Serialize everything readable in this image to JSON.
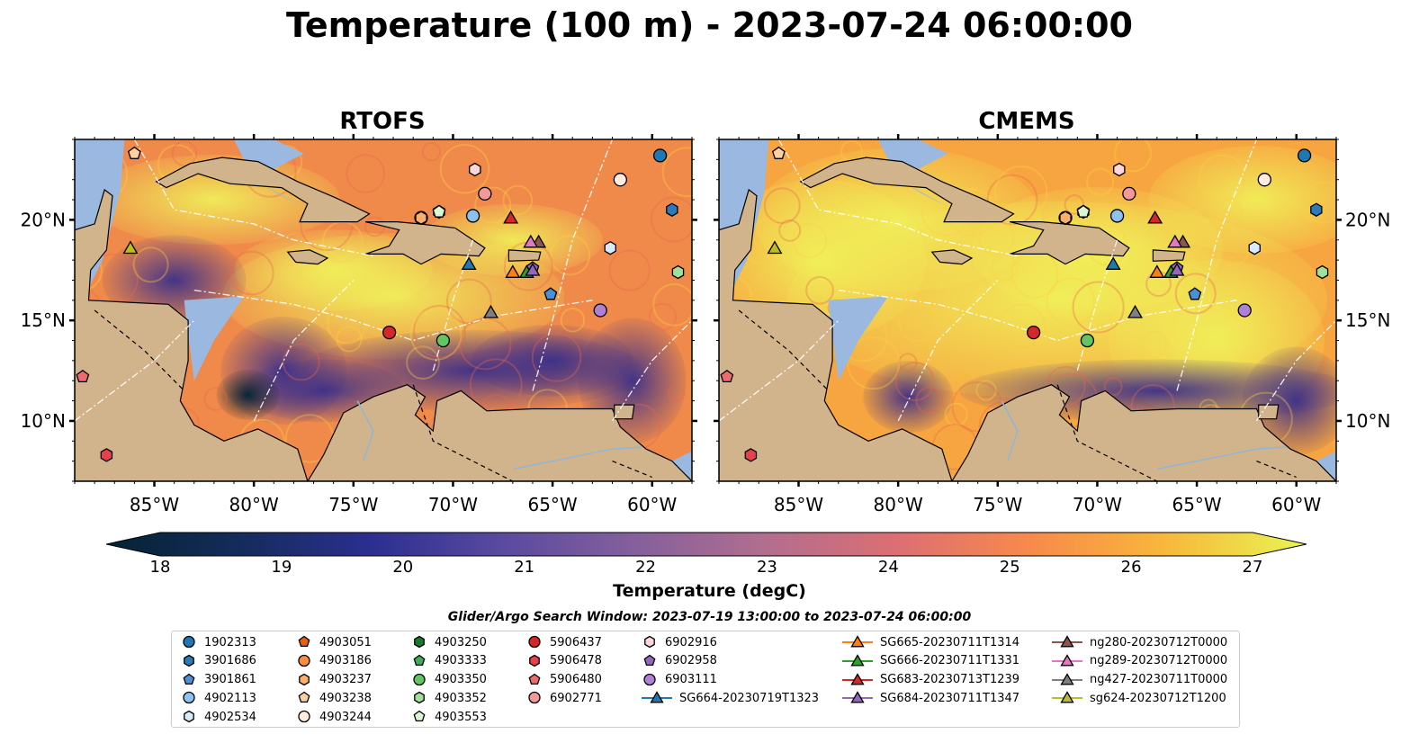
{
  "title": "Temperature (100 m) - 2023-07-24 06:00:00",
  "panels": [
    {
      "title": "RTOFS"
    },
    {
      "title": "CMEMS"
    }
  ],
  "map": {
    "lon_range": [
      -89,
      -58
    ],
    "lat_range": [
      7,
      24
    ],
    "lon_ticks": [
      "85°W",
      "80°W",
      "75°W",
      "70°W",
      "65°W",
      "60°W"
    ],
    "lat_ticks": [
      "20°N",
      "15°N",
      "10°N"
    ],
    "colors": {
      "land": "#d2b48c",
      "shelf": "#9ab8e0",
      "contour": "#8a6a4a",
      "eez": "#ffffff"
    }
  },
  "colorbar": {
    "label": "Temperature (degC)",
    "min": 18,
    "max": 27,
    "ticks": [
      "18",
      "19",
      "20",
      "21",
      "22",
      "23",
      "24",
      "25",
      "26",
      "27"
    ],
    "extend": "both",
    "colormap": "thermal"
  },
  "search_window": "Glider/Argo Search Window: 2023-07-19 13:00:00 to 2023-07-24 06:00:00",
  "platforms": [
    {
      "id": "1902313",
      "marker": "circle",
      "color": "#1f77b4",
      "lon": -59.6,
      "lat": 23.2
    },
    {
      "id": "3901686",
      "marker": "hexagon",
      "color": "#2b7bba",
      "lon": -59.0,
      "lat": 20.5
    },
    {
      "id": "3901861",
      "marker": "pentagon",
      "color": "#4a90d9",
      "lon": -65.1,
      "lat": 16.3
    },
    {
      "id": "4902113",
      "marker": "circle",
      "color": "#8ec2ee",
      "lon": -69.0,
      "lat": 20.2
    },
    {
      "id": "4902534",
      "marker": "hexagon",
      "color": "#d9ebfb",
      "lon": -62.1,
      "lat": 18.6
    },
    {
      "id": "4903051",
      "marker": "pentagon",
      "color": "#e8600c",
      "lon": -71.6,
      "lat": 20.1
    },
    {
      "id": "4903186",
      "marker": "circle",
      "color": "#fd8d3c",
      "lon": -71.6,
      "lat": 20.1
    },
    {
      "id": "4903237",
      "marker": "hexagon",
      "color": "#fdae6b",
      "lon": -71.6,
      "lat": 20.1
    },
    {
      "id": "4903238",
      "marker": "pentagon",
      "color": "#fdd0a2",
      "lon": -86.0,
      "lat": 23.3
    },
    {
      "id": "4903244",
      "marker": "circle",
      "color": "#feedde",
      "lon": -61.6,
      "lat": 22.0
    },
    {
      "id": "4903250",
      "marker": "hexagon",
      "color": "#1b7a2b",
      "lon": -70.7,
      "lat": 20.4
    },
    {
      "id": "4903333",
      "marker": "pentagon",
      "color": "#41ab5d",
      "lon": -70.7,
      "lat": 20.4
    },
    {
      "id": "4903350",
      "marker": "circle",
      "color": "#63c463",
      "lon": -70.5,
      "lat": 14.0
    },
    {
      "id": "4903352",
      "marker": "hexagon",
      "color": "#a1e09a",
      "lon": -58.7,
      "lat": 17.4
    },
    {
      "id": "4903553",
      "marker": "pentagon",
      "color": "#d9f7d0",
      "lon": -70.7,
      "lat": 20.4
    },
    {
      "id": "5906437",
      "marker": "circle",
      "color": "#d62728",
      "lon": -73.2,
      "lat": 14.4
    },
    {
      "id": "5906478",
      "marker": "hexagon",
      "color": "#e8414a",
      "lon": -87.4,
      "lat": 8.3
    },
    {
      "id": "5906480",
      "marker": "pentagon",
      "color": "#ef6a6f",
      "lon": -88.6,
      "lat": 12.2
    },
    {
      "id": "6902771",
      "marker": "circle",
      "color": "#f4989c",
      "lon": -68.4,
      "lat": 21.3
    },
    {
      "id": "6902916",
      "marker": "hexagon",
      "color": "#fcd6d8",
      "lon": -68.9,
      "lat": 22.5
    },
    {
      "id": "6902958",
      "marker": "pentagon",
      "color": "#9467bd",
      "lon": -66.0,
      "lat": 17.6
    },
    {
      "id": "6903111",
      "marker": "circle",
      "color": "#b07fd6",
      "lon": -62.6,
      "lat": 15.5
    },
    {
      "id": "SG664-20230719T1323",
      "marker": "triangle",
      "color": "#1f77b4",
      "lon": -69.2,
      "lat": 17.8
    },
    {
      "id": "SG665-20230711T1314",
      "marker": "triangle",
      "color": "#ff7f0e",
      "lon": -67.0,
      "lat": 17.4
    },
    {
      "id": "SG666-20230711T1331",
      "marker": "triangle",
      "color": "#2ca02c",
      "lon": -66.3,
      "lat": 17.4
    },
    {
      "id": "SG683-20230713T1239",
      "marker": "triangle",
      "color": "#d62728",
      "lon": -67.1,
      "lat": 20.1
    },
    {
      "id": "SG684-20230711T1347",
      "marker": "triangle",
      "color": "#9467bd",
      "lon": -66.0,
      "lat": 17.5
    },
    {
      "id": "ng280-20230712T0000",
      "marker": "triangle",
      "color": "#8c564b",
      "lon": -65.7,
      "lat": 18.9
    },
    {
      "id": "ng289-20230712T0000",
      "marker": "triangle",
      "color": "#e377c2",
      "lon": -66.1,
      "lat": 18.9
    },
    {
      "id": "ng427-20230711T0000",
      "marker": "triangle",
      "color": "#7f7f7f",
      "lon": -68.1,
      "lat": 15.4
    },
    {
      "id": "sg624-20230712T1200",
      "marker": "triangle",
      "color": "#bcbd22",
      "lon": -86.2,
      "lat": 18.6
    }
  ]
}
